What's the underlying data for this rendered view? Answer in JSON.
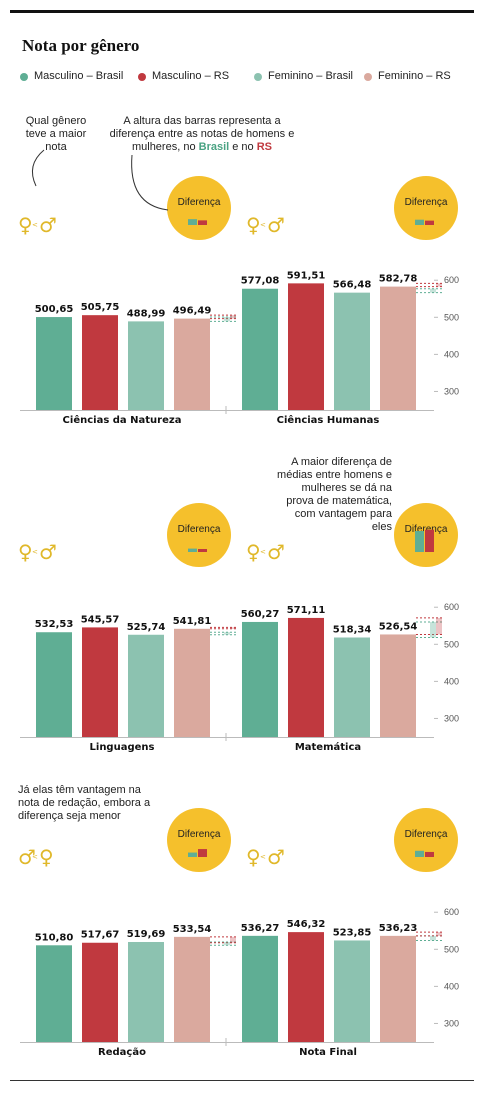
{
  "header": {
    "title": "Nota por gênero"
  },
  "legend": [
    {
      "label": "Masculino – Brasil",
      "color": "#5fae94"
    },
    {
      "label": "Masculino – RS",
      "color": "#c0393f"
    },
    {
      "label": "Feminino – Brasil",
      "color": "#8cc2b0"
    },
    {
      "label": "Feminino – RS",
      "color": "#daa99e"
    }
  ],
  "notes": {
    "maior_nota": "Qual gênero teve a maior nota",
    "altura_barras": {
      "text": "A altura das barras representa a diferença entre as notas de homens e mulheres, no ",
      "brasil": "Brasil",
      "e_no": " e no ",
      "rs": "RS"
    },
    "matematica": "A maior diferença de médias entre homens e mulheres se dá na prova de matemática, com vantagem para eles",
    "redacao": "Já elas têm vantagem na nota de redação, embora a diferença seja menor"
  },
  "badge_label": "Diferença",
  "icons": {
    "female": "female-sign-icon",
    "male": "male-sign-icon"
  },
  "chart_data": [
    {
      "type": "bar",
      "ylim": [
        250,
        620
      ],
      "yticks": [
        300,
        400,
        500,
        600
      ],
      "series_names": [
        "Masculino – Brasil",
        "Masculino – RS",
        "Feminino – Brasil",
        "Feminino – RS"
      ],
      "groups": [
        {
          "category": "Ciências da Natureza",
          "values": [
            500.65,
            505.75,
            488.99,
            496.49
          ],
          "labels": [
            "500,65",
            "505,75",
            "488,99",
            "496,49"
          ],
          "winner": "male"
        },
        {
          "category": "Ciências Humanas",
          "values": [
            577.08,
            591.51,
            566.48,
            582.78
          ],
          "labels": [
            "577,08",
            "591,51",
            "566,48",
            "582,78"
          ],
          "winner": "male"
        }
      ]
    },
    {
      "type": "bar",
      "ylim": [
        250,
        620
      ],
      "yticks": [
        300,
        400,
        500,
        600
      ],
      "series_names": [
        "Masculino – Brasil",
        "Masculino – RS",
        "Feminino – Brasil",
        "Feminino – RS"
      ],
      "groups": [
        {
          "category": "Linguagens",
          "values": [
            532.53,
            545.57,
            525.74,
            541.81
          ],
          "labels": [
            "532,53",
            "545,57",
            "525,74",
            "541,81"
          ],
          "winner": "male"
        },
        {
          "category": "Matemática",
          "values": [
            560.27,
            571.11,
            518.34,
            526.54
          ],
          "labels": [
            "560,27",
            "571,11",
            "518,34",
            "526,54"
          ],
          "winner": "male"
        }
      ]
    },
    {
      "type": "bar",
      "ylim": [
        250,
        620
      ],
      "yticks": [
        300,
        400,
        500,
        600
      ],
      "series_names": [
        "Masculino – Brasil",
        "Masculino – RS",
        "Feminino – Brasil",
        "Feminino – RS"
      ],
      "groups": [
        {
          "category": "Redação",
          "values": [
            510.8,
            517.67,
            519.69,
            533.54
          ],
          "labels": [
            "510,80",
            "517,67",
            "519,69",
            "533,54"
          ],
          "winner": "female"
        },
        {
          "category": "Nota Final",
          "values": [
            536.27,
            546.32,
            523.85,
            536.23
          ],
          "labels": [
            "536,27",
            "546,32",
            "523,85",
            "536,23"
          ],
          "winner": "male"
        }
      ]
    }
  ]
}
